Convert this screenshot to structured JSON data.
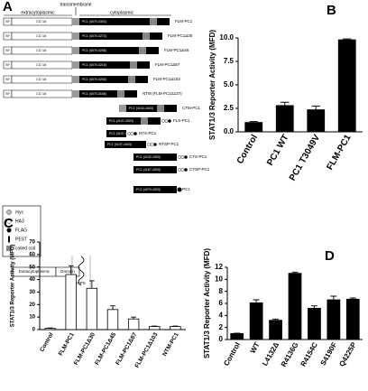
{
  "diagram": {
    "panel": "A",
    "header": [
      "extracytoplasmic",
      "transmembrane",
      "cytoplasmic"
    ],
    "sp": "SP",
    "cd16": "CD 16",
    "rows": [
      {
        "segment": "PC1 (4070-4303)",
        "name": "FLM-PC1"
      },
      {
        "segment": "PC1 (4070-4273)",
        "name": "FLM-PC1Δ30"
      },
      {
        "segment": "PC1 (4070-4258)",
        "name": "FLM-PC1Δ45"
      },
      {
        "segment": "PC1 (4070-4216)",
        "name": "FLM-PC1Δ87"
      },
      {
        "segment": "PC1 (4070-4200)",
        "name": "FLM-PC1Δ103"
      },
      {
        "segment": "PC1 (4070-4166)",
        "name": "NTM (FLM-PC1Δ137)"
      },
      {
        "segment": "PC1 (4102-4303)",
        "name": "CTM-PC1"
      },
      {
        "segment": "PC1 (4107-4303)",
        "name": "FLS-PC1"
      },
      {
        "segment": "PC1 (4107-4166)",
        "name": "NTS-PC1"
      },
      {
        "segment": "PC1 (4107-4303)",
        "name": "NTSP-PC1"
      },
      {
        "segment": "PC1 (4102-4303)",
        "name": "CTS-PC1"
      },
      {
        "segment": "PC1 (4167-4303)",
        "name": "CTSP-PC1"
      },
      {
        "segment": "PC1 (4070-4303)",
        "name": "PC1"
      }
    ],
    "legend": [
      "myc",
      "HA3",
      "FLAG",
      "PEST",
      "coiled coil"
    ],
    "cartoon": [
      "Extracytoplasmic",
      "Domain",
      "GPS"
    ]
  },
  "chart_data": [
    {
      "type": "bar",
      "panel": "B",
      "ylabel": "STAT1/3 Reporter Activity (MFD)",
      "color": "#000000",
      "categories": [
        "Control",
        "PC1 WT",
        "PC1 T3049V",
        "FLM-PC1"
      ],
      "values": [
        1.0,
        2.8,
        2.35,
        9.8
      ],
      "errors": [
        0.1,
        0.35,
        0.4,
        0.1
      ],
      "ylim": [
        0,
        10
      ],
      "yticks": [
        {
          "value": 0,
          "label": "0.0"
        },
        2.5,
        {
          "value": 5,
          "label": "5.0"
        },
        7.5,
        {
          "value": 10,
          "label": "10.0"
        }
      ]
    },
    {
      "type": "bar",
      "panel": "C",
      "ylabel": "STAT1/3 Reporter Activity (MFD)",
      "color": "#ffffff",
      "categories": [
        "Control",
        "FLM-PC1",
        "FLM-PC1Δ30",
        "FLM-PC1Δ45",
        "FLM-PC1Δ87",
        "FLM-PC1Δ103",
        "NTM-PC1"
      ],
      "values": [
        1,
        44,
        33,
        16,
        8.5,
        2.5,
        2.5
      ],
      "errors": [
        0.3,
        7,
        6,
        3,
        1.5,
        0.3,
        0.3
      ],
      "ylim": [
        0,
        70
      ],
      "yticks": [
        0,
        10,
        20,
        30,
        40,
        50,
        60,
        70
      ]
    },
    {
      "type": "bar",
      "panel": "D",
      "ylabel": "STAT1/3 Reporter Activity (MFD)",
      "color": "#000000",
      "categories": [
        "Control",
        "WT",
        "L4132Δ",
        "R4136G",
        "R4154C",
        "S4190F",
        "Q4225P"
      ],
      "values": [
        1.0,
        6.1,
        3.2,
        11.0,
        5.2,
        6.6,
        6.7
      ],
      "errors": [
        0.05,
        0.5,
        0.2,
        0.2,
        0.4,
        0.6,
        0.2
      ],
      "ylim": [
        0,
        12
      ],
      "yticks": [
        0,
        2,
        4,
        6,
        8,
        10,
        12
      ]
    }
  ]
}
